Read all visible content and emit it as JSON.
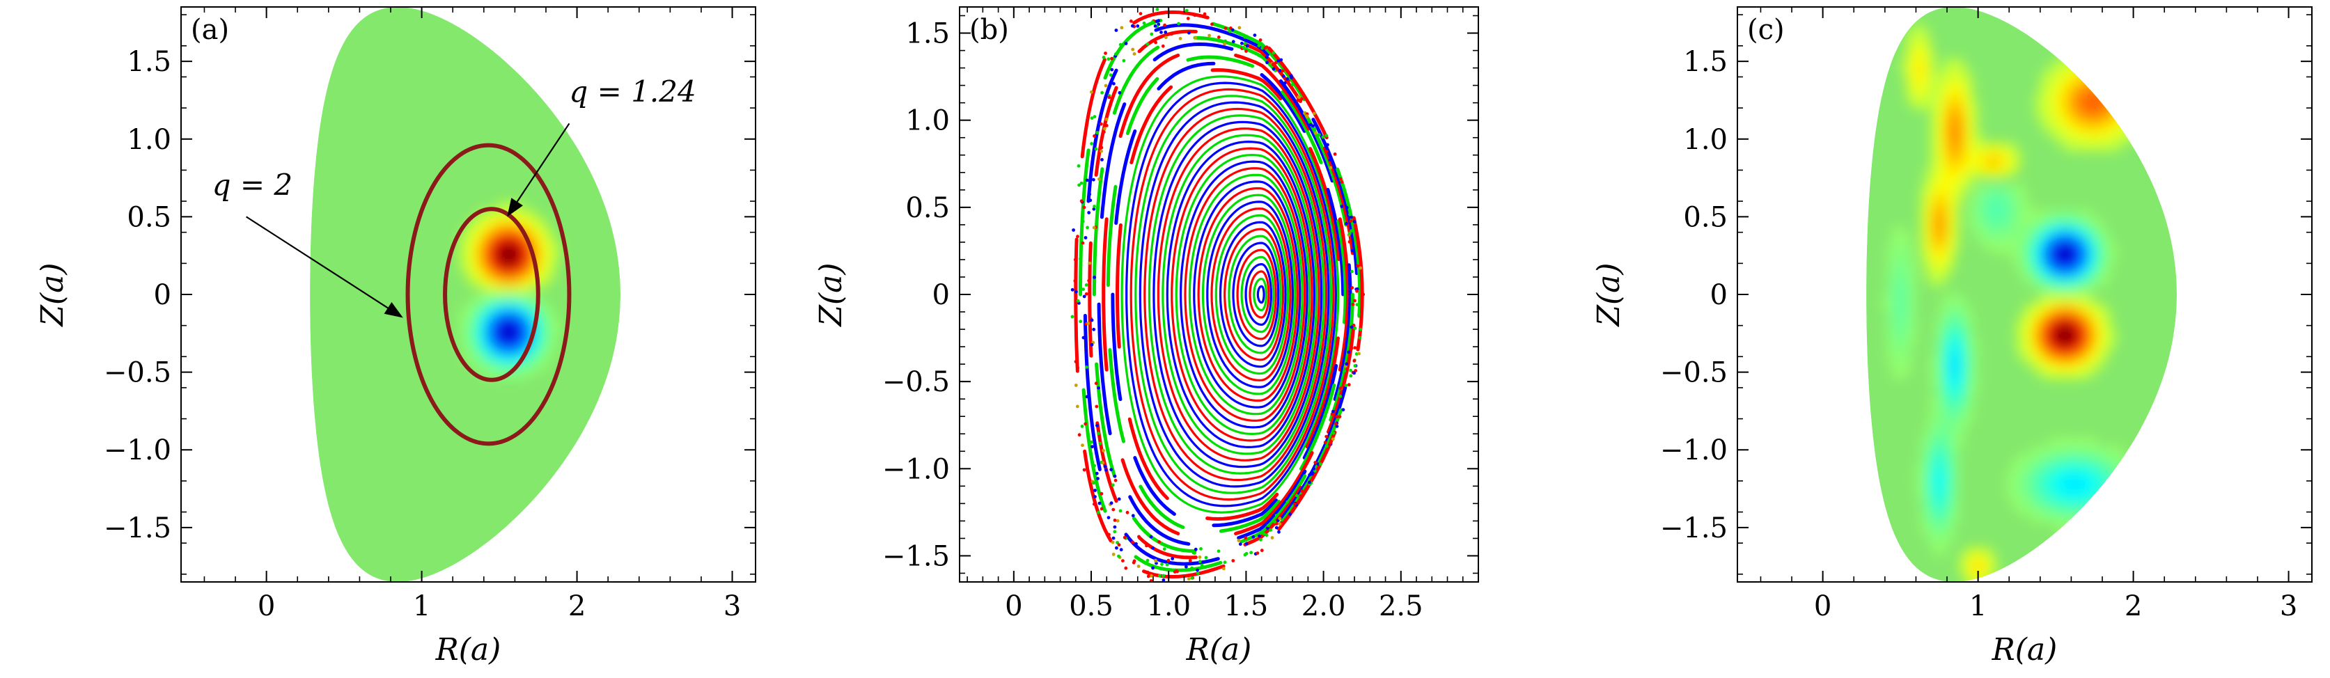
{
  "chart_data": [
    {
      "type": "heatmap",
      "panel_label": "(a)",
      "xlabel": "R(a)",
      "ylabel": "Z(a)",
      "xlim": [
        -0.55,
        3.15
      ],
      "ylim": [
        -1.85,
        1.85
      ],
      "xticks": [
        {
          "v": 0,
          "t": "0"
        },
        {
          "v": 1,
          "t": "1"
        },
        {
          "v": 2,
          "t": "2"
        },
        {
          "v": 3,
          "t": "3"
        }
      ],
      "yticks": [
        {
          "v": 1.5,
          "t": "1.5"
        },
        {
          "v": 1.0,
          "t": "1.0"
        },
        {
          "v": 0.5,
          "t": "0.5"
        },
        {
          "v": 0,
          "t": "0"
        },
        {
          "v": -0.5,
          "t": "−0.5"
        },
        {
          "v": -1.0,
          "t": "−1.0"
        },
        {
          "v": -1.5,
          "t": "−1.5"
        }
      ],
      "boundary": {
        "r0": 1.28,
        "a": 1.0,
        "kappa": 1.85,
        "delta": 0.45
      },
      "colors": {
        "background": "#84e86c",
        "positive": "#e00000",
        "negative": "#1030e0"
      },
      "blobs": [
        {
          "r": 1.56,
          "z": 0.26,
          "amp": 1.0,
          "wr": 0.17,
          "wz": 0.17
        },
        {
          "r": 1.56,
          "z": -0.24,
          "amp": -1.0,
          "wr": 0.17,
          "wz": 0.17
        }
      ],
      "surfaces": [
        {
          "label": "q = 2",
          "rc": 1.43,
          "zc": 0,
          "ar": 0.52,
          "az": 0.96,
          "color": "#8b1a1a"
        },
        {
          "label": "q = 1.24",
          "rc": 1.45,
          "zc": 0,
          "ar": 0.3,
          "az": 0.55,
          "color": "#8b1a1a"
        }
      ],
      "annotations": [
        {
          "text": "q = 2",
          "text_r": -0.35,
          "text_z": 0.64,
          "arrow_from_r": -0.13,
          "arrow_from_z": 0.5,
          "arrow_to_r": 0.88,
          "arrow_to_z": -0.15
        },
        {
          "text": "q = 1.24",
          "text_r": 1.95,
          "text_z": 1.24,
          "arrow_from_r": 1.95,
          "arrow_from_z": 1.1,
          "arrow_to_r": 1.55,
          "arrow_to_z": 0.5
        }
      ]
    },
    {
      "type": "scatter",
      "panel_label": "(b)",
      "xlabel": "R(a)",
      "ylabel": "Z(a)",
      "xlim": [
        -0.35,
        3.0
      ],
      "ylim": [
        -1.65,
        1.65
      ],
      "xticks": [
        {
          "v": 0,
          "t": "0"
        },
        {
          "v": 0.5,
          "t": "0.5"
        },
        {
          "v": 1.0,
          "t": "1.0"
        },
        {
          "v": 1.5,
          "t": "1.5"
        },
        {
          "v": 2.0,
          "t": "2.0"
        },
        {
          "v": 2.5,
          "t": "2.5"
        }
      ],
      "yticks": [
        {
          "v": 1.5,
          "t": "1.5"
        },
        {
          "v": 1.0,
          "t": "1.0"
        },
        {
          "v": 0.5,
          "t": "0.5"
        },
        {
          "v": 0,
          "t": "0"
        },
        {
          "v": -0.5,
          "t": "−0.5"
        },
        {
          "v": -1.0,
          "t": "−1.0"
        },
        {
          "v": -1.5,
          "t": "−1.5"
        }
      ],
      "axis": {
        "r": 1.6,
        "z": 0.0
      },
      "edge": {
        "outer_r": 2.25,
        "inner_r": 0.4,
        "top_z": 1.62,
        "tri": 0.5
      },
      "series_colors": [
        "#ff0000",
        "#0000ff",
        "#00dd00"
      ],
      "num_surfaces": 42,
      "extra_color": "#c8a000"
    },
    {
      "type": "heatmap",
      "panel_label": "(c)",
      "xlabel": "R(a)",
      "ylabel": "Z(a)",
      "xlim": [
        -0.55,
        3.15
      ],
      "ylim": [
        -1.85,
        1.85
      ],
      "xticks": [
        {
          "v": 0,
          "t": "0"
        },
        {
          "v": 1,
          "t": "1"
        },
        {
          "v": 2,
          "t": "2"
        },
        {
          "v": 3,
          "t": "3"
        }
      ],
      "yticks": [
        {
          "v": 1.5,
          "t": "1.5"
        },
        {
          "v": 1.0,
          "t": "1.0"
        },
        {
          "v": 0.5,
          "t": "0.5"
        },
        {
          "v": 0,
          "t": "0"
        },
        {
          "v": -0.5,
          "t": "−0.5"
        },
        {
          "v": -1.0,
          "t": "−1.0"
        },
        {
          "v": -1.5,
          "t": "−1.5"
        }
      ],
      "boundary": {
        "r0": 1.28,
        "a": 1.0,
        "kappa": 1.85,
        "delta": 0.45
      },
      "colors": {
        "background": "#84e86c",
        "positive": "#e00000",
        "negative": "#1030e0"
      },
      "blobs": [
        {
          "r": 1.56,
          "z": 0.26,
          "amp": -1.0,
          "wr": 0.17,
          "wz": 0.16
        },
        {
          "r": 1.56,
          "z": -0.26,
          "amp": 1.0,
          "wr": 0.17,
          "wz": 0.16
        },
        {
          "r": 1.74,
          "z": 1.24,
          "amp": 0.5,
          "wr": 0.22,
          "wz": 0.2
        },
        {
          "r": 0.85,
          "z": 1.05,
          "amp": 0.42,
          "wr": 0.09,
          "wz": 0.3
        },
        {
          "r": 0.75,
          "z": 0.45,
          "amp": 0.38,
          "wr": 0.08,
          "wz": 0.25
        },
        {
          "r": 1.1,
          "z": 0.85,
          "amp": 0.3,
          "wr": 0.13,
          "wz": 0.1
        },
        {
          "r": 1.12,
          "z": 0.55,
          "amp": -0.18,
          "wr": 0.15,
          "wz": 0.2
        },
        {
          "r": 0.85,
          "z": -0.45,
          "amp": -0.4,
          "wr": 0.09,
          "wz": 0.3
        },
        {
          "r": 0.75,
          "z": -1.2,
          "amp": -0.32,
          "wr": 0.09,
          "wz": 0.3
        },
        {
          "r": 1.62,
          "z": -1.22,
          "amp": -0.38,
          "wr": 0.28,
          "wz": 0.18
        },
        {
          "r": 0.5,
          "z": -0.05,
          "amp": -0.15,
          "wr": 0.08,
          "wz": 0.4
        },
        {
          "r": 1.0,
          "z": -1.75,
          "amp": 0.25,
          "wr": 0.08,
          "wz": 0.1
        },
        {
          "r": 0.62,
          "z": 1.45,
          "amp": 0.22,
          "wr": 0.07,
          "wz": 0.2
        }
      ]
    }
  ]
}
